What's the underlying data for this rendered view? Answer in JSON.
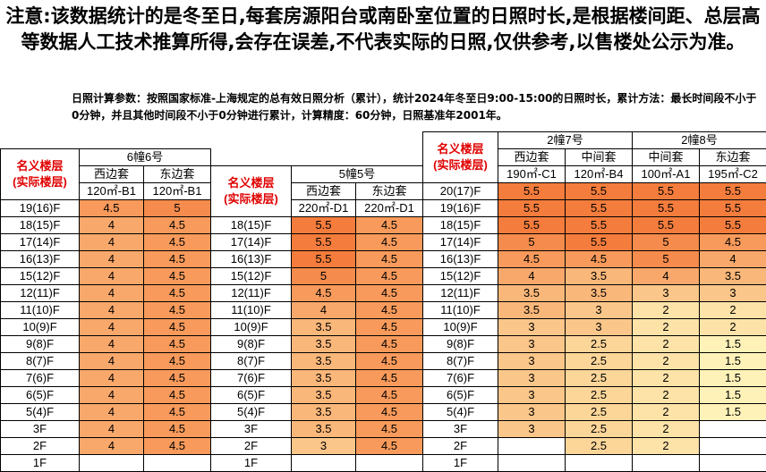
{
  "notice": "注意:该数据统计的是冬至日,每套房源阳台或南卧室位置的日照时长,是根据楼间距、总层高等数据人工技术推算所得,会存在误差,不代表实际的日照,仅供参考,以售楼处公示为准。",
  "params": "日照计算参数：按照国家标准-上海规定的总有效日照分析（累计），统计2024年冬至日9:00-15:00的日照时长，累计方法：最长时间段不小于0分钟，并且其他时间段不小于0分钟进行累计，计算精度：60分钟，日照基准年2001年。",
  "tables": [
    {
      "floor_header": [
        "名义楼层",
        "(实际楼层)"
      ],
      "groups": [
        {
          "title": "6幢6号",
          "units": [
            {
              "side": "西边套",
              "type": "120㎡-B1"
            },
            {
              "side": "东边套",
              "type": "120㎡-B1"
            }
          ]
        }
      ],
      "rows": [
        {
          "floor": "19(16)F",
          "values": [
            4.5,
            5
          ]
        },
        {
          "floor": "18(15)F",
          "values": [
            4,
            4.5
          ]
        },
        {
          "floor": "17(14)F",
          "values": [
            4,
            4.5
          ]
        },
        {
          "floor": "16(13)F",
          "values": [
            4,
            4.5
          ]
        },
        {
          "floor": "15(12)F",
          "values": [
            4,
            4.5
          ]
        },
        {
          "floor": "12(11)F",
          "values": [
            4,
            4.5
          ]
        },
        {
          "floor": "11(10)F",
          "values": [
            4,
            4.5
          ]
        },
        {
          "floor": "10(9)F",
          "values": [
            4,
            4.5
          ]
        },
        {
          "floor": "9(8)F",
          "values": [
            4,
            4.5
          ]
        },
        {
          "floor": "8(7)F",
          "values": [
            4,
            4.5
          ]
        },
        {
          "floor": "7(6)F",
          "values": [
            4,
            4.5
          ]
        },
        {
          "floor": "6(5)F",
          "values": [
            4,
            4.5
          ]
        },
        {
          "floor": "5(4)F",
          "values": [
            4,
            4.5
          ]
        },
        {
          "floor": "3F",
          "values": [
            4,
            4.5
          ]
        },
        {
          "floor": "2F",
          "values": [
            4,
            4.5
          ]
        },
        {
          "floor": "1F",
          "values": [
            null,
            null
          ]
        }
      ]
    },
    {
      "floor_header": [
        "名义楼层",
        "(实际楼层)"
      ],
      "groups": [
        {
          "title": "5幢5号",
          "units": [
            {
              "side": "西边套",
              "type": "220㎡-D1"
            },
            {
              "side": "东边套",
              "type": "220㎡-D1"
            }
          ]
        }
      ],
      "rows": [
        {
          "floor": "18(15)F",
          "values": [
            5.5,
            4.5
          ]
        },
        {
          "floor": "17(14)F",
          "values": [
            5.5,
            4.5
          ]
        },
        {
          "floor": "16(13)F",
          "values": [
            5.5,
            4.5
          ]
        },
        {
          "floor": "15(12)F",
          "values": [
            5,
            4.5
          ]
        },
        {
          "floor": "12(11)F",
          "values": [
            4.5,
            4.5
          ]
        },
        {
          "floor": "11(10)F",
          "values": [
            4,
            4.5
          ]
        },
        {
          "floor": "10(9)F",
          "values": [
            3.5,
            4.5
          ]
        },
        {
          "floor": "9(8)F",
          "values": [
            3.5,
            4.5
          ]
        },
        {
          "floor": "8(7)F",
          "values": [
            3.5,
            4.5
          ]
        },
        {
          "floor": "7(6)F",
          "values": [
            3.5,
            4.5
          ]
        },
        {
          "floor": "6(5)F",
          "values": [
            3.5,
            4.5
          ]
        },
        {
          "floor": "5(4)F",
          "values": [
            3.5,
            4.5
          ]
        },
        {
          "floor": "3F",
          "values": [
            3.5,
            4.5
          ]
        },
        {
          "floor": "2F",
          "values": [
            3,
            4.5
          ]
        },
        {
          "floor": "1F",
          "values": [
            null,
            null
          ]
        }
      ]
    },
    {
      "floor_header": [
        "名义楼层",
        "(实际楼层)"
      ],
      "groups": [
        {
          "title": "2幢7号",
          "units": [
            {
              "side": "西边套",
              "type": "190㎡-C1"
            },
            {
              "side": "中间套",
              "type": "120㎡-B4"
            }
          ]
        },
        {
          "title": "2幢8号",
          "units": [
            {
              "side": "中间套",
              "type": "100㎡-A1"
            },
            {
              "side": "东边套",
              "type": "195㎡-C2"
            }
          ]
        }
      ],
      "rows": [
        {
          "floor": "20(17)F",
          "values": [
            5.5,
            5.5,
            5.5,
            5.5
          ]
        },
        {
          "floor": "19(16)F",
          "values": [
            5.5,
            5.5,
            5.5,
            5.5
          ]
        },
        {
          "floor": "18(15)F",
          "values": [
            5.5,
            5.5,
            5.5,
            5.5
          ]
        },
        {
          "floor": "17(14)F",
          "values": [
            5,
            5.5,
            5,
            4.5
          ]
        },
        {
          "floor": "16(13)F",
          "values": [
            4.5,
            4.5,
            5,
            4
          ]
        },
        {
          "floor": "15(12)F",
          "values": [
            4,
            3.5,
            4,
            3.5
          ]
        },
        {
          "floor": "12(11)F",
          "values": [
            3.5,
            3.5,
            3,
            3
          ]
        },
        {
          "floor": "11(10)F",
          "values": [
            3.5,
            3,
            2,
            2
          ]
        },
        {
          "floor": "10(9)F",
          "values": [
            3,
            3,
            2,
            2
          ]
        },
        {
          "floor": "9(8)F",
          "values": [
            3,
            2.5,
            2,
            1.5
          ]
        },
        {
          "floor": "8(7)F",
          "values": [
            3,
            2.5,
            2,
            1.5
          ]
        },
        {
          "floor": "7(6)F",
          "values": [
            3,
            2.5,
            2,
            1.5
          ]
        },
        {
          "floor": "6(5)F",
          "values": [
            3,
            2.5,
            2,
            1.5
          ]
        },
        {
          "floor": "5(4)F",
          "values": [
            3,
            2.5,
            2,
            1.5
          ]
        },
        {
          "floor": "3F",
          "values": [
            3,
            2.5,
            2,
            null
          ]
        },
        {
          "floor": "2F",
          "values": [
            null,
            2.5,
            2,
            null
          ]
        },
        {
          "floor": "1F",
          "values": [
            null,
            null,
            null,
            null
          ]
        }
      ]
    }
  ]
}
